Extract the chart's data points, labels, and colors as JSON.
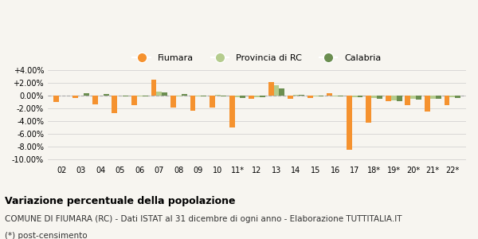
{
  "years": [
    "02",
    "03",
    "04",
    "05",
    "06",
    "07",
    "08",
    "09",
    "10",
    "11*",
    "12",
    "13",
    "14",
    "15",
    "16",
    "17",
    "18*",
    "19*",
    "20*",
    "21*",
    "22*"
  ],
  "fiumara": [
    -1.0,
    -0.3,
    -1.3,
    -2.7,
    -1.5,
    2.5,
    -1.8,
    -2.3,
    -1.8,
    -5.0,
    -0.5,
    2.2,
    -0.5,
    -0.4,
    0.4,
    -8.5,
    -4.2,
    -0.8,
    -1.5,
    -2.5,
    -1.5
  ],
  "provincia_rc": [
    0.0,
    0.0,
    0.0,
    0.0,
    -0.1,
    0.6,
    -0.05,
    -0.05,
    0.1,
    -0.2,
    -0.2,
    1.7,
    0.2,
    -0.1,
    -0.1,
    -0.2,
    -0.4,
    -0.7,
    -0.5,
    -0.5,
    -0.2
  ],
  "calabria": [
    0.0,
    0.4,
    0.3,
    -0.1,
    -0.1,
    0.5,
    0.3,
    -0.05,
    -0.1,
    -0.35,
    -0.25,
    1.1,
    0.2,
    -0.1,
    -0.15,
    -0.2,
    -0.5,
    -0.9,
    -0.6,
    -0.5,
    -0.3
  ],
  "fiumara_color": "#f5922f",
  "provincia_color": "#b5cc8e",
  "calabria_color": "#6b8e50",
  "bg_color": "#f7f5f0",
  "grid_color": "#cccccc",
  "zero_line_color": "#aaaaaa",
  "ylim": [
    -10.5,
    4.5
  ],
  "yticks": [
    -10.0,
    -8.0,
    -6.0,
    -4.0,
    -2.0,
    0.0,
    2.0,
    4.0
  ],
  "ytick_labels": [
    "-10.00%",
    "-8.00%",
    "-6.00%",
    "-4.00%",
    "-2.00%",
    "0.00%",
    "+2.00%",
    "+4.00%"
  ],
  "title": "Variazione percentuale della popolazione",
  "subtitle": "COMUNE DI FIUMARA (RC) - Dati ISTAT al 31 dicembre di ogni anno - Elaborazione TUTTITALIA.IT",
  "footnote": "(*) post-censimento",
  "title_fontsize": 9,
  "subtitle_fontsize": 7.5,
  "legend_labels": [
    "Fiumara",
    "Provincia di RC",
    "Calabria"
  ]
}
